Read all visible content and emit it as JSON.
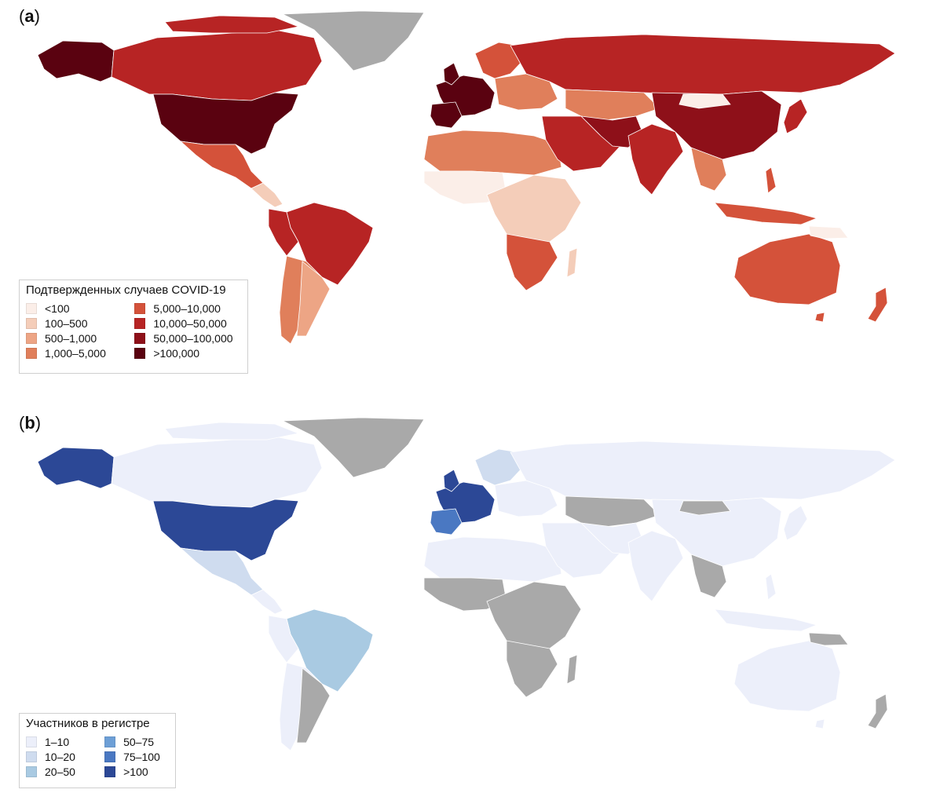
{
  "colors": {
    "ocean": "#ffffff",
    "no_data": "#a9a9a9",
    "border": "#ffffff"
  },
  "panel_a": {
    "label_letter": "a",
    "legend_title": "Подтвержденных случаев COVID-19",
    "legend": [
      {
        "label": "<100",
        "color": "#fbeee8"
      },
      {
        "label": "100–500",
        "color": "#f4cdb9"
      },
      {
        "label": "500–1,000",
        "color": "#eda585"
      },
      {
        "label": "1,000–5,000",
        "color": "#e07f5b"
      },
      {
        "label": "5,000–10,000",
        "color": "#d4523a"
      },
      {
        "label": "10,000–50,000",
        "color": "#b72424"
      },
      {
        "label": "50,000–100,000",
        "color": "#8e1019"
      },
      {
        "label": ">100,000",
        "color": "#5a0210"
      }
    ]
  },
  "panel_b": {
    "label_letter": "b",
    "legend_title": "Участников в регистре",
    "legend": [
      {
        "label": "1–10",
        "color": "#eceffa"
      },
      {
        "label": "10–20",
        "color": "#cfdcef"
      },
      {
        "label": "20–50",
        "color": "#a9cae2"
      },
      {
        "label": "50–75",
        "color": "#6d9fd6"
      },
      {
        "label": "75–100",
        "color": "#4a78c2"
      },
      {
        "label": ">100",
        "color": "#2c4896"
      }
    ]
  }
}
